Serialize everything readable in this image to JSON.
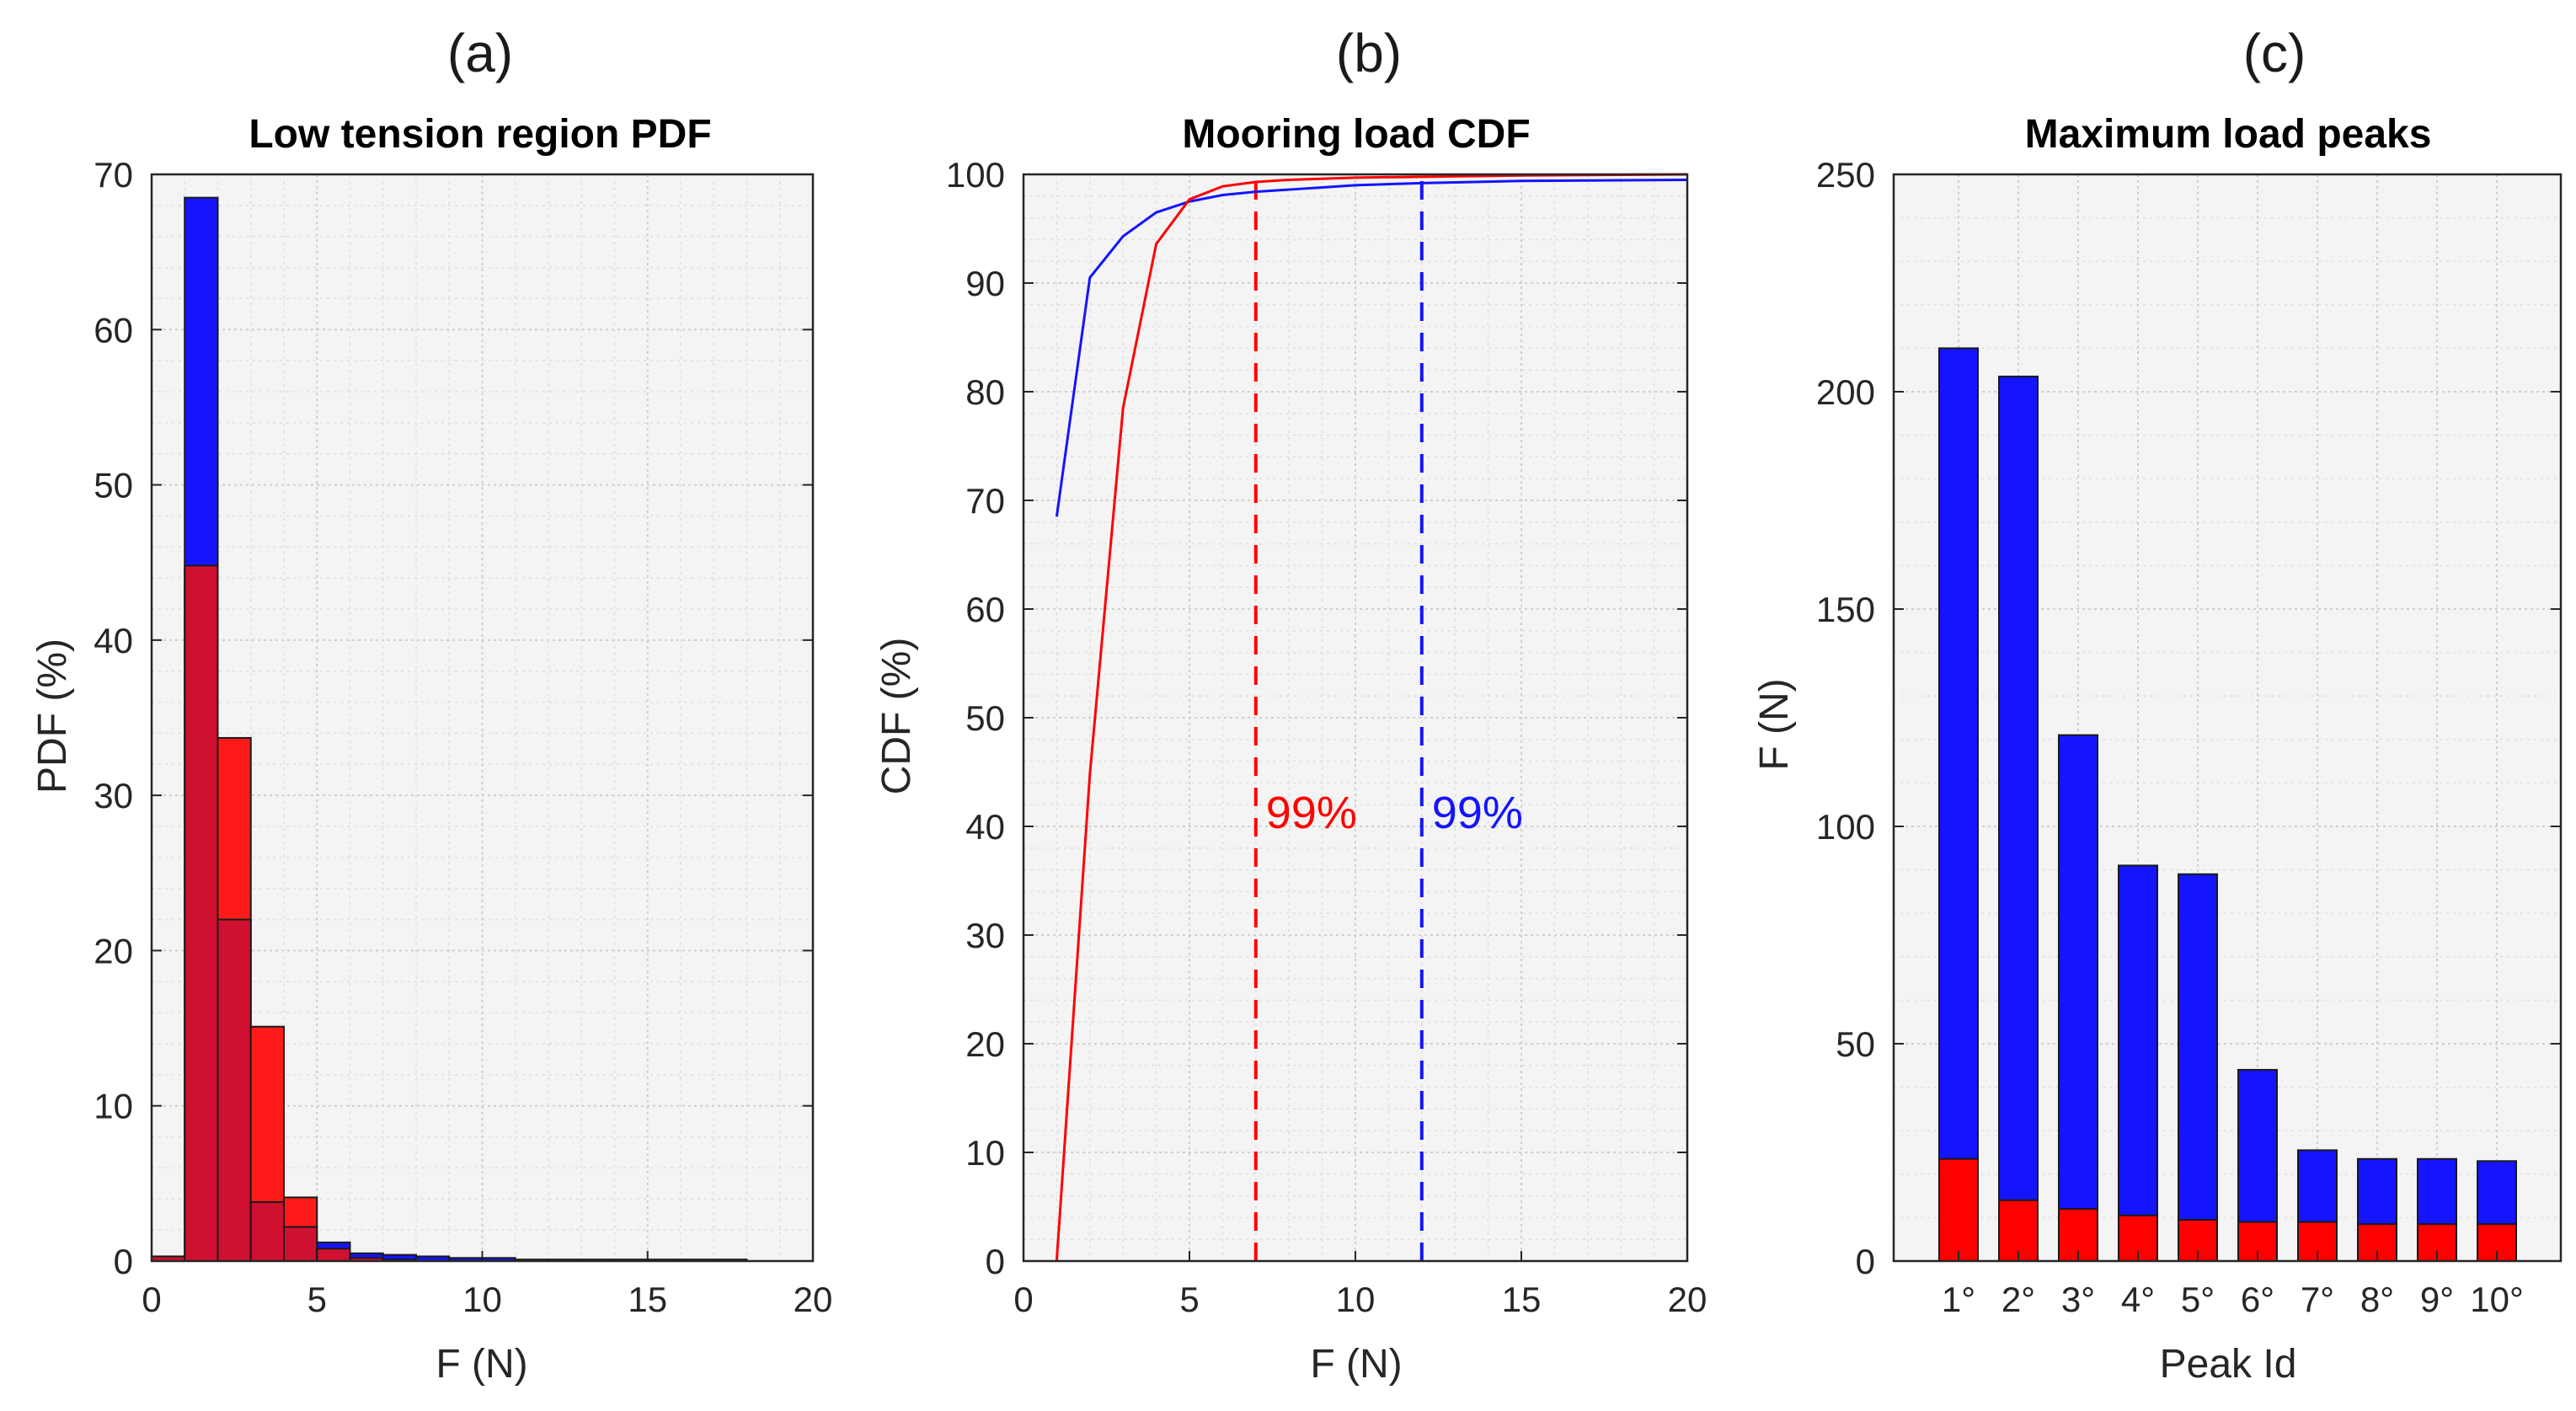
{
  "colors": {
    "blue": "#1414ff",
    "red": "#ff0000",
    "red_hist": "#ff1a1a",
    "overlap": "#d01030",
    "bg": "#f4f4f4",
    "grid": "#cfcfcf"
  },
  "chart_data": [
    {
      "id": "a",
      "panel_label": "(a)",
      "type": "bar",
      "title": "Low tension region PDF",
      "xlabel": "F (N)",
      "ylabel": "PDF (%)",
      "xlim": [
        0,
        20
      ],
      "ylim": [
        0,
        70
      ],
      "xticks": [
        0,
        5,
        10,
        15,
        20
      ],
      "yticks": [
        0,
        10,
        20,
        30,
        40,
        50,
        60,
        70
      ],
      "bin_width": 1,
      "bin_starts": [
        0,
        1,
        2,
        3,
        4,
        5,
        6,
        7,
        8,
        9,
        10,
        11,
        12,
        13,
        14,
        15,
        16,
        17
      ],
      "series": [
        {
          "name": "blue",
          "color": "blue",
          "values": [
            0.3,
            68.5,
            22,
            3.8,
            2.2,
            1.2,
            0.5,
            0.4,
            0.3,
            0.2,
            0.2,
            0.1,
            0.1,
            0.1,
            0.1,
            0.1,
            0.1,
            0.1
          ]
        },
        {
          "name": "red",
          "color": "red",
          "values": [
            0.3,
            44.8,
            33.7,
            15.1,
            4.1,
            0.8,
            0.2,
            0.1,
            0,
            0,
            0,
            0,
            0,
            0,
            0,
            0,
            0,
            0
          ]
        }
      ],
      "grid": true
    },
    {
      "id": "b",
      "panel_label": "(b)",
      "type": "line",
      "title": "Mooring load CDF",
      "xlabel": "F (N)",
      "ylabel": "CDF (%)",
      "xlim": [
        0,
        20
      ],
      "ylim": [
        0,
        100
      ],
      "xticks": [
        0,
        5,
        10,
        15,
        20
      ],
      "yticks": [
        0,
        10,
        20,
        30,
        40,
        50,
        60,
        70,
        80,
        90,
        100
      ],
      "series": [
        {
          "name": "blue",
          "color": "blue",
          "x": [
            1,
            2,
            3,
            4,
            5,
            6,
            7,
            8,
            9,
            10,
            12,
            15,
            20
          ],
          "y": [
            68.5,
            90.5,
            94.3,
            96.5,
            97.5,
            98.1,
            98.4,
            98.6,
            98.8,
            99.0,
            99.2,
            99.4,
            99.5
          ]
        },
        {
          "name": "red",
          "color": "red",
          "x": [
            1,
            2,
            3,
            4,
            5,
            6,
            7,
            8,
            10,
            15,
            20
          ],
          "y": [
            0,
            44.8,
            78.5,
            93.6,
            97.7,
            98.9,
            99.3,
            99.5,
            99.7,
            99.9,
            100
          ]
        }
      ],
      "markers": [
        {
          "x": 7,
          "color": "red",
          "label": "99%",
          "label_y": 40
        },
        {
          "x": 12,
          "color": "blue",
          "label": "99%",
          "label_y": 40
        }
      ],
      "grid": true
    },
    {
      "id": "c",
      "panel_label": "(c)",
      "type": "bar",
      "title": "Maximum load peaks",
      "xlabel": "Peak Id",
      "ylabel": "F (N)",
      "ylim": [
        0,
        250
      ],
      "yticks": [
        0,
        50,
        100,
        150,
        200,
        250
      ],
      "categories": [
        "1°",
        "2°",
        "3°",
        "4°",
        "5°",
        "6°",
        "7°",
        "8°",
        "9°",
        "10°"
      ],
      "series": [
        {
          "name": "blue",
          "color": "blue",
          "values": [
            210,
            203.5,
            121,
            91,
            89,
            44,
            25.5,
            23.5,
            23.5,
            23
          ]
        },
        {
          "name": "red",
          "color": "red",
          "values": [
            23.5,
            14,
            12,
            10.5,
            9.5,
            9,
            9,
            8.5,
            8.5,
            8.5
          ]
        }
      ],
      "grid": true
    }
  ]
}
